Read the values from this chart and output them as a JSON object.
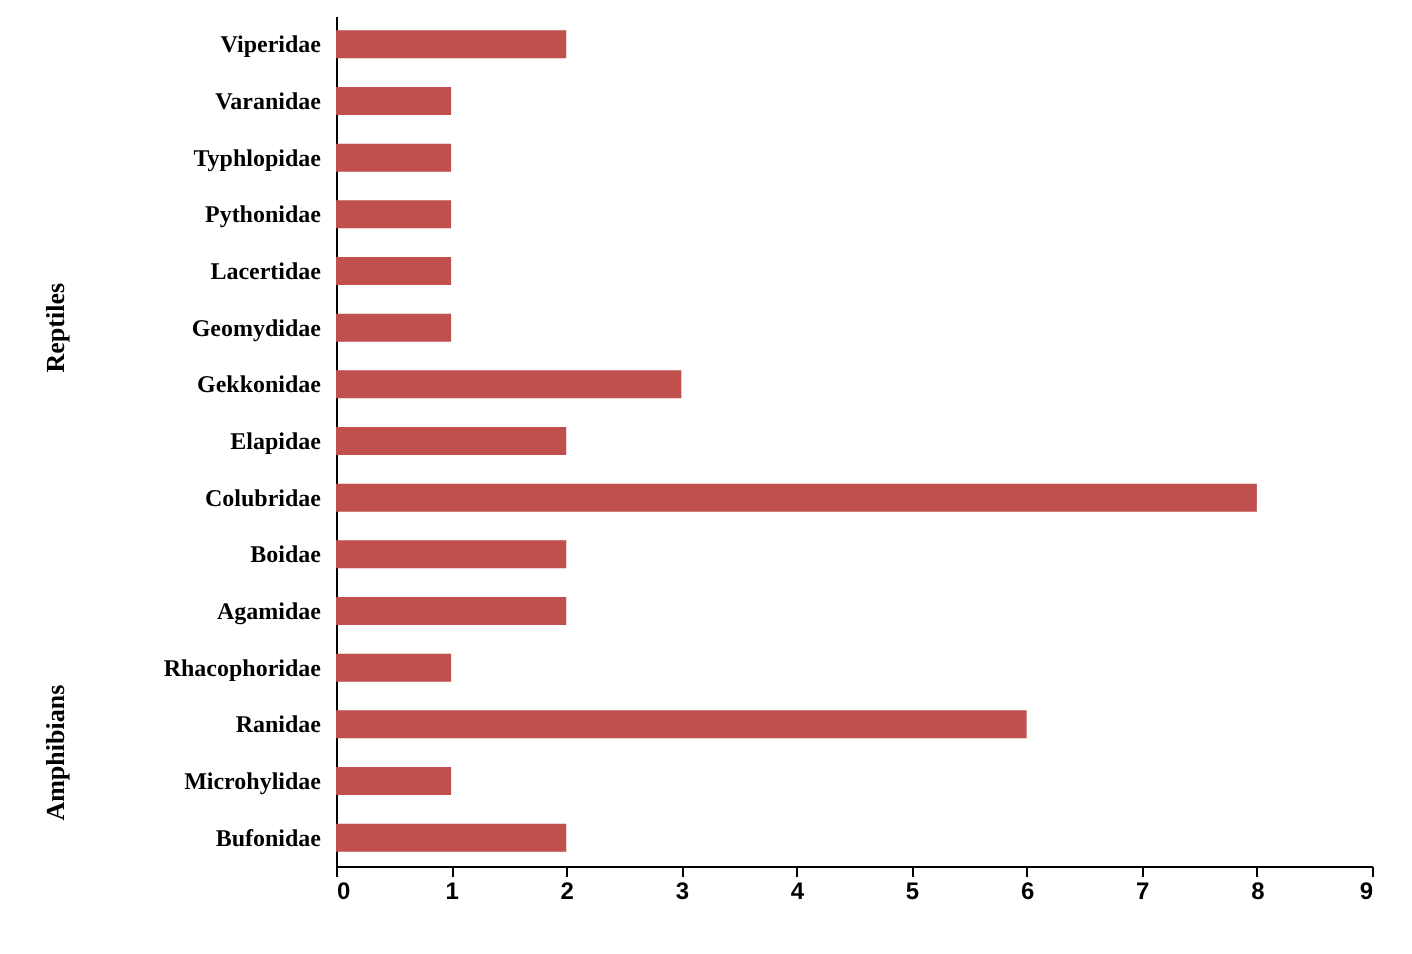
{
  "chart_data": {
    "type": "bar",
    "orientation": "horizontal",
    "categories": [
      "Viperidae",
      "Varanidae",
      "Typhlopidae",
      "Pythonidae",
      "Lacertidae",
      "Geomydidae",
      "Gekkonidae",
      "Elapidae",
      "Colubridae",
      "Boidae",
      "Agamidae",
      "Rhacophoridae",
      "Ranidae",
      "Microhylidae",
      "Bufonidae"
    ],
    "values": [
      2,
      1,
      1,
      1,
      1,
      1,
      3,
      2,
      8,
      2,
      2,
      1,
      6,
      1,
      2
    ],
    "color": "#c0504d",
    "xlim": [
      0,
      9
    ],
    "xticks": [
      0,
      1,
      2,
      3,
      4,
      5,
      6,
      7,
      8,
      9
    ],
    "grid": false,
    "annotations": [
      "Reptiles",
      "Amphibians"
    ]
  }
}
